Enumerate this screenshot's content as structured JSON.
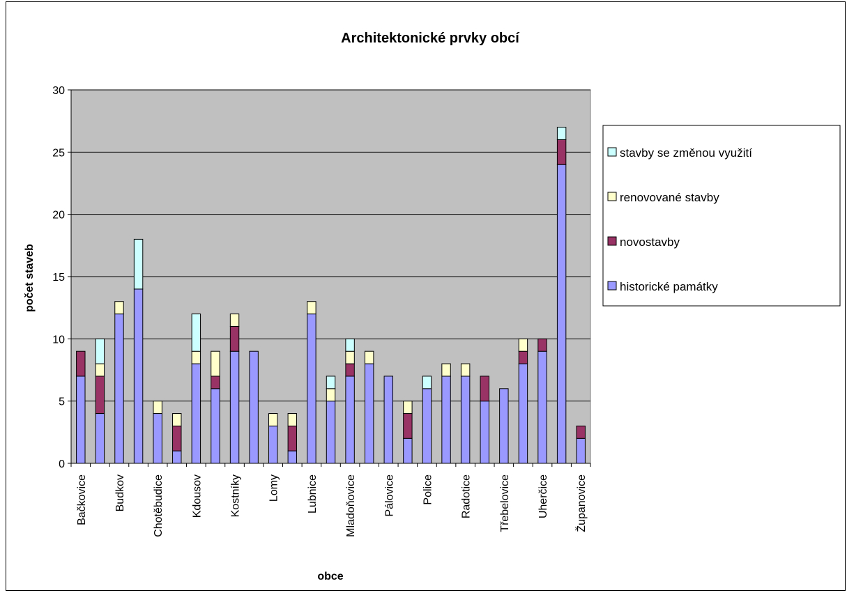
{
  "chart_data": {
    "type": "bar",
    "stacked": true,
    "title": "Architektonické prvky obcí",
    "xlabel": "obce",
    "ylabel": "počet staveb",
    "ylim": [
      0,
      30
    ],
    "yticks": [
      0,
      5,
      10,
      15,
      20,
      25,
      30
    ],
    "grid": true,
    "legend_position": "right",
    "categories": [
      "Bačkovice",
      "",
      "Budkov",
      "",
      "Chotěbudice",
      "",
      "Kdousov",
      "",
      "Kostníky",
      "",
      "Lomy",
      "",
      "Lubnice",
      "",
      "Mladoňovice",
      "",
      "Pálovice",
      "",
      "Police",
      "",
      "Radotice",
      "",
      "Třebelovice",
      "",
      "Uherčice",
      "",
      "Županovice"
    ],
    "series": [
      {
        "name": "historické památky",
        "color": "#9999ff",
        "values": [
          7,
          4,
          12,
          14,
          4,
          1,
          8,
          6,
          9,
          9,
          3,
          1,
          12,
          5,
          7,
          8,
          7,
          2,
          6,
          7,
          7,
          5,
          6,
          8,
          9,
          24,
          2
        ]
      },
      {
        "name": "novostavby",
        "color": "#993366",
        "values": [
          2,
          3,
          0,
          0,
          0,
          2,
          0,
          1,
          2,
          0,
          0,
          2,
          0,
          0,
          1,
          0,
          0,
          2,
          0,
          0,
          0,
          2,
          0,
          1,
          1,
          2,
          1
        ]
      },
      {
        "name": "renovované stavby",
        "color": "#ffffcc",
        "values": [
          0,
          1,
          1,
          0,
          1,
          1,
          1,
          2,
          1,
          0,
          1,
          1,
          1,
          1,
          1,
          1,
          0,
          1,
          0,
          1,
          1,
          0,
          0,
          1,
          0,
          0,
          0
        ]
      },
      {
        "name": "stavby se změnou využití",
        "color": "#ccffff",
        "values": [
          0,
          2,
          0,
          4,
          0,
          0,
          3,
          0,
          0,
          0,
          0,
          0,
          0,
          1,
          1,
          0,
          0,
          0,
          1,
          0,
          0,
          0,
          0,
          0,
          0,
          1,
          0
        ]
      }
    ],
    "legend_order": [
      "stavby se změnou využití",
      "renovované stavby",
      "novostavby",
      "historické památky"
    ],
    "plot_background": "#c0c0c0"
  }
}
